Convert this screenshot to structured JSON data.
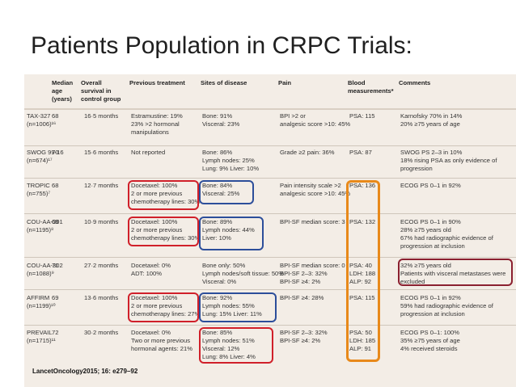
{
  "title": "Patients Population in CRPC Trials:",
  "headers": [
    "",
    "Median age (years)",
    "Overall survival in control group",
    "Previous treatment",
    "Sites of disease",
    "Pain",
    "Blood measurements*",
    "Comments"
  ],
  "rows": [
    {
      "trial": "TAX-327\n(n=1006)¹⁶",
      "age": "68",
      "survival": "16·5 months",
      "treatment": "Estramustine: 19%\n23% >2 hormonal\nmanipulations",
      "sites": "Bone: 91%\nVisceral: 23%",
      "pain": "BPI >2 or\nanalgesic score >10: 45%",
      "blood": "PSA: 115",
      "comments": "Karnofsky 70% in 14%\n20% ≥75 years of age"
    },
    {
      "trial": "SWOG 99-16\n(n=674)¹⁷",
      "age": "70",
      "survival": "15·6 months",
      "treatment": "Not reported",
      "sites": "Bone: 86%\nLymph nodes: 25%\nLung: 9% Liver: 10%",
      "pain": "Grade ≥2 pain: 36%",
      "blood": "PSA: 87",
      "comments": "SWOG PS 2–3 in 10%\n18% rising PSA as only evidence of\nprogression"
    },
    {
      "trial": "TROPIC\n(n=755)⁷",
      "age": "68",
      "survival": "12·7 months",
      "treatment": "Docetaxel: 100%\n2 or more previous\nchemotherapy lines: 30%",
      "sites": "Bone: 84%\nVisceral: 25%",
      "pain": "Pain intensity scale >2\nanalgesic score >10: 45%",
      "blood": "PSA: 136",
      "comments": "ECOG PS 0–1 in 92%"
    },
    {
      "trial": "COU-AA-301\n(n=1195)⁸",
      "age": "69",
      "survival": "10·9 months",
      "treatment": "Docetaxel: 100%\n2 or more previous\nchemotherapy lines: 30%",
      "sites": "Bone: 89%\nLymph nodes: 44%\nLiver: 10%",
      "pain": "BPI-SF median score: 3",
      "blood": "PSA: 132",
      "comments": "ECOG PS 0–1 in 90%\n28% ≥75 years old\n67% had radiographic evidence of\nprogression at inclusion"
    },
    {
      "trial": "COU-AA-302\n(n=1088)⁹",
      "age": "71",
      "survival": "27·2 months",
      "treatment": "Docetaxel: 0%\nADT: 100%",
      "sites": "Bone only: 50%\nLymph nodes/soft tissue: 50%\nVisceral: 0%",
      "pain": "BPI-SF median score: 0\nBPI-SF 2–3: 32%\nBPI-SF ≥4: 2%",
      "blood": "PSA: 40\nLDH: 188\nALP: 92",
      "comments": "32% ≥75 years old\nPatients with visceral metastases were\nexcluded"
    },
    {
      "trial": "AFFIRM\n(n=1199)¹⁰",
      "age": "69",
      "survival": "13·6 months",
      "treatment": "Docetaxel: 100%\n2 or more previous\nchemotherapy lines: 27%",
      "sites": "Bone: 92%\nLymph nodes: 55%\nLung: 15% Liver: 11%",
      "pain": "BPI-SF ≥4: 28%",
      "blood": "PSA: 115",
      "comments": "ECOG PS 0–1 in 92%\n59% had radiographic evidence of\nprogression at inclusion"
    },
    {
      "trial": "PREVAIL\n(n=1715)¹¹",
      "age": "72",
      "survival": "30·2 months",
      "treatment": "Docetaxel: 0%\nTwo or more previous\nhormonal agents: 21%",
      "sites": "Bone: 85%\nLymph nodes: 51%\nVisceral: 12%\nLung: 8% Liver: 4%",
      "pain": "BPI-SF 2–3: 32%\nBPI-SF ≥4: 2%",
      "blood": "PSA: 50\nLDH: 185\nALP: 91",
      "comments": "ECOG PS 0–1: 100%\n35% ≥75 years of age\n4% received steroids"
    }
  ],
  "citation": "LancetOncology2015; 16: e279–92",
  "colors": {
    "red": "#d0202a",
    "blue": "#2c4e9a",
    "orange": "#e8891a",
    "darkred": "#8b2030"
  }
}
